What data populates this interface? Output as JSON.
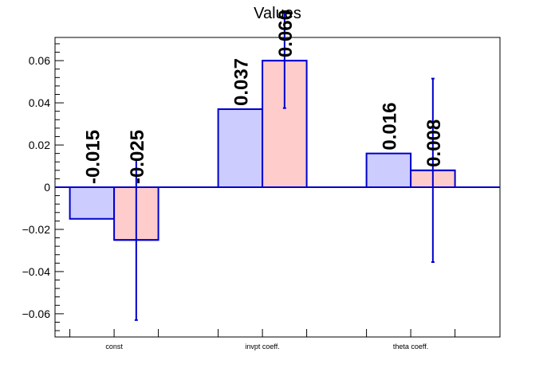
{
  "chart_data": {
    "type": "bar",
    "title": "Values",
    "categories": [
      "const",
      "invpt coeff.",
      "theta coeff."
    ],
    "series": [
      {
        "values": [
          -0.015,
          0.037,
          0.016
        ],
        "errors": [
          null,
          null,
          null
        ],
        "color": "#ccccff",
        "edge": "#0000cc"
      },
      {
        "values": [
          -0.025,
          0.06,
          0.008
        ],
        "errors": [
          0.038,
          0.0225,
          0.0435
        ],
        "color": "#ffcccc",
        "edge": "#0000cc"
      }
    ],
    "data_labels": [
      [
        "-0.015",
        "0.037",
        "0.016"
      ],
      [
        "-0.025",
        "0.060",
        "0.008"
      ]
    ],
    "y_ticks": [
      "−0.06",
      "−0.04",
      "−0.02",
      "0",
      "0.02",
      "0.04",
      "0.06"
    ],
    "ylim": [
      -0.071,
      0.071
    ],
    "xlabel": "",
    "ylabel": "",
    "grid": false,
    "legend": "none",
    "axis_color": "#000000",
    "error_color": "#0000cc"
  }
}
